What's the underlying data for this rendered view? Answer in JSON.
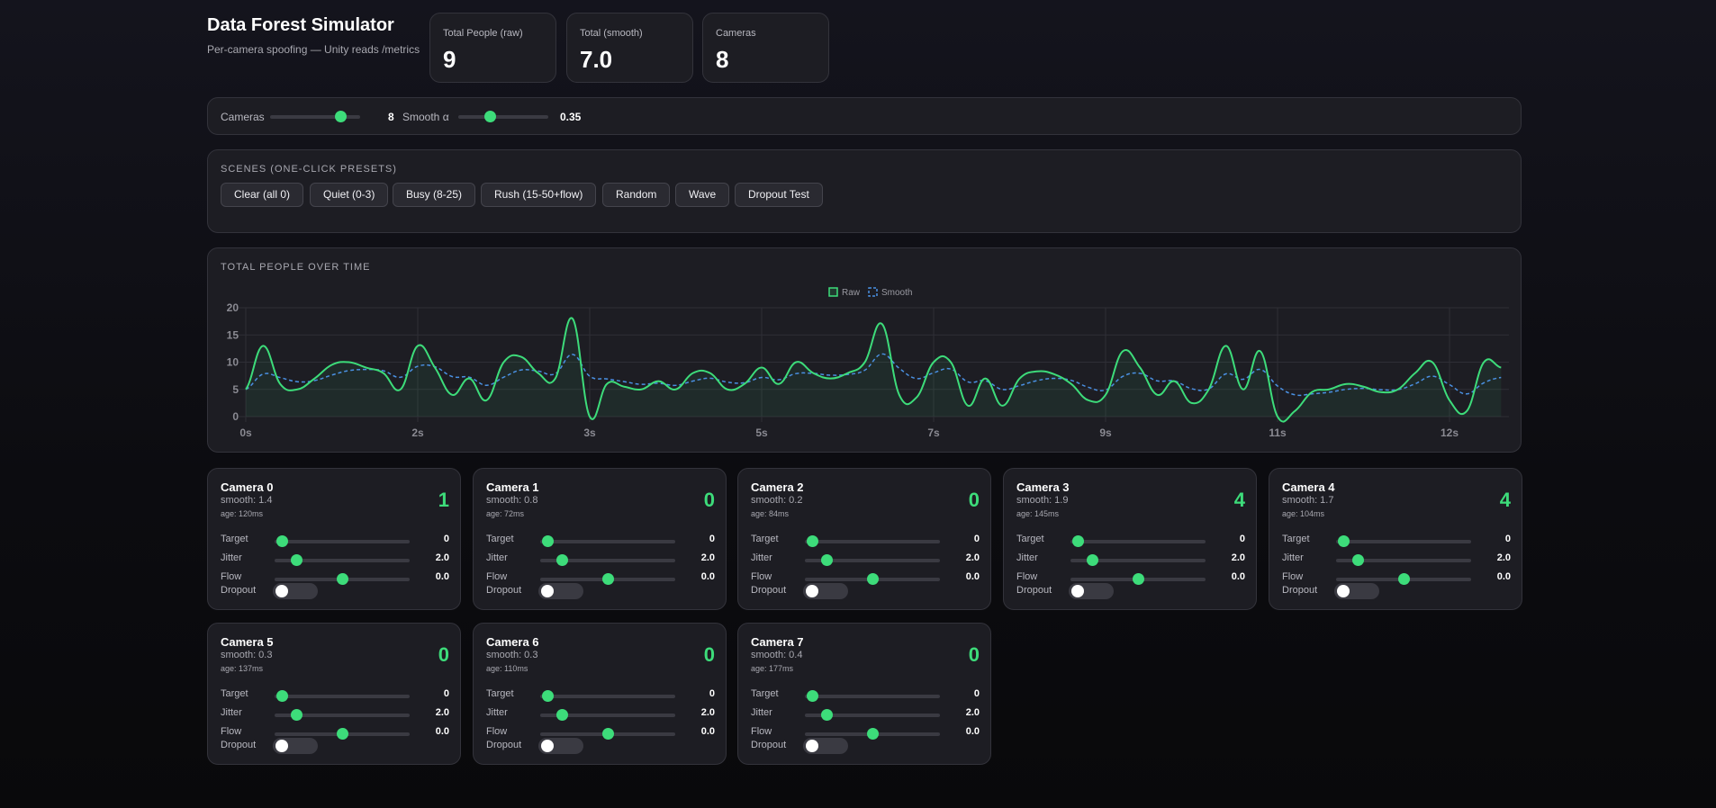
{
  "header": {
    "title": "Data Forest Simulator",
    "subtitle": "Per-camera spoofing — Unity reads /metrics"
  },
  "stats": [
    {
      "label": "Total People (raw)",
      "value": "9"
    },
    {
      "label": "Total (smooth)",
      "value": "7.0"
    },
    {
      "label": "Cameras",
      "value": "8"
    }
  ],
  "controls": {
    "cameras_label": "Cameras",
    "cameras_value": "8",
    "cameras_fraction": 0.78,
    "alpha_label": "Smooth α",
    "alpha_value": "0.35",
    "alpha_fraction": 0.35
  },
  "scenes": {
    "title": "SCENES (ONE-CLICK PRESETS)",
    "buttons": [
      "Clear (all 0)",
      "Quiet (0-3)",
      "Busy (8-25)",
      "Rush (15-50+flow)",
      "Random",
      "Wave",
      "Dropout Test"
    ]
  },
  "chart_data": {
    "type": "line",
    "title": "TOTAL PEOPLE OVER TIME",
    "legend": {
      "position": "top",
      "entries": [
        "Raw",
        "Smooth"
      ]
    },
    "ylim": [
      0,
      20
    ],
    "yticks": [
      "0",
      "5",
      "10",
      "15",
      "20"
    ],
    "xticks": [
      {
        "index": 0,
        "label": "0s"
      },
      {
        "index": 10,
        "label": "2s"
      },
      {
        "index": 20,
        "label": "3s"
      },
      {
        "index": 30,
        "label": "5s"
      },
      {
        "index": 40,
        "label": "7s"
      },
      {
        "index": 50,
        "label": "9s"
      },
      {
        "index": 60,
        "label": "11s"
      },
      {
        "index": 70,
        "label": "12s"
      }
    ],
    "grid": true,
    "series": [
      {
        "name": "Raw",
        "color": "#3ddc7a",
        "style": "solid",
        "fill": true,
        "values": [
          5,
          13,
          6,
          5,
          7,
          9.5,
          10,
          9,
          8,
          5,
          13,
          9,
          4,
          7,
          3,
          10,
          11,
          8,
          7,
          18,
          0,
          6,
          5.5,
          5,
          6.5,
          5,
          8,
          8,
          5,
          6,
          9,
          6,
          10,
          8,
          7,
          8,
          10,
          17,
          4,
          3.5,
          10,
          10,
          2,
          7,
          2,
          7,
          8.3,
          7.8,
          6,
          3,
          4,
          12,
          9,
          4,
          6.5,
          2.5,
          5,
          13,
          5,
          12,
          0,
          1,
          4.5,
          5,
          6,
          5.5,
          4.5,
          5,
          8,
          10,
          3,
          1,
          10,
          9
        ]
      },
      {
        "name": "Smooth",
        "color": "#4a90e2",
        "style": "dashed",
        "alpha": 0.35
      }
    ]
  },
  "camera_labels": {
    "target": "Target",
    "jitter": "Jitter",
    "flow": "Flow",
    "dropout": "Dropout"
  },
  "cameras": [
    {
      "name": "Camera 0",
      "smooth": "smooth: 1.4",
      "age": "age: 120ms",
      "count": "1",
      "target": "0",
      "jitter": "2.0",
      "flow": "0.0",
      "target_frac": 0.05,
      "jitter_frac": 0.16,
      "flow_frac": 0.5,
      "dropout": false
    },
    {
      "name": "Camera 1",
      "smooth": "smooth: 0.8",
      "age": "age: 72ms",
      "count": "0",
      "target": "0",
      "jitter": "2.0",
      "flow": "0.0",
      "target_frac": 0.05,
      "jitter_frac": 0.16,
      "flow_frac": 0.5,
      "dropout": false
    },
    {
      "name": "Camera 2",
      "smooth": "smooth: 0.2",
      "age": "age: 84ms",
      "count": "0",
      "target": "0",
      "jitter": "2.0",
      "flow": "0.0",
      "target_frac": 0.05,
      "jitter_frac": 0.16,
      "flow_frac": 0.5,
      "dropout": false
    },
    {
      "name": "Camera 3",
      "smooth": "smooth: 1.9",
      "age": "age: 145ms",
      "count": "4",
      "target": "0",
      "jitter": "2.0",
      "flow": "0.0",
      "target_frac": 0.05,
      "jitter_frac": 0.16,
      "flow_frac": 0.5,
      "dropout": false
    },
    {
      "name": "Camera 4",
      "smooth": "smooth: 1.7",
      "age": "age: 104ms",
      "count": "4",
      "target": "0",
      "jitter": "2.0",
      "flow": "0.0",
      "target_frac": 0.05,
      "jitter_frac": 0.16,
      "flow_frac": 0.5,
      "dropout": false
    },
    {
      "name": "Camera 5",
      "smooth": "smooth: 0.3",
      "age": "age: 137ms",
      "count": "0",
      "target": "0",
      "jitter": "2.0",
      "flow": "0.0",
      "target_frac": 0.05,
      "jitter_frac": 0.16,
      "flow_frac": 0.5,
      "dropout": false
    },
    {
      "name": "Camera 6",
      "smooth": "smooth: 0.3",
      "age": "age: 110ms",
      "count": "0",
      "target": "0",
      "jitter": "2.0",
      "flow": "0.0",
      "target_frac": 0.05,
      "jitter_frac": 0.16,
      "flow_frac": 0.5,
      "dropout": false
    },
    {
      "name": "Camera 7",
      "smooth": "smooth: 0.4",
      "age": "age: 177ms",
      "count": "0",
      "target": "0",
      "jitter": "2.0",
      "flow": "0.0",
      "target_frac": 0.05,
      "jitter_frac": 0.16,
      "flow_frac": 0.5,
      "dropout": false
    }
  ]
}
